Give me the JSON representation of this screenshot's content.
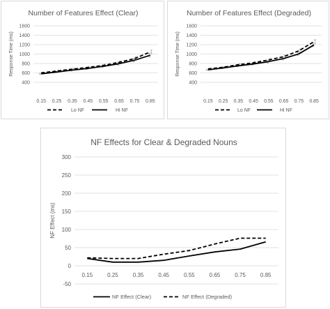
{
  "chart_data": [
    {
      "type": "line",
      "title": "Number of Features Effect (Clear)",
      "xlabel": "",
      "ylabel": "Response Time (ms)",
      "x": [
        "0.15",
        "0.25",
        "0.35",
        "0.45",
        "0.55",
        "0.65",
        "0.75",
        "0.85"
      ],
      "yticks": [
        "400",
        "600",
        "800",
        "1000",
        "1200",
        "1400",
        "1600"
      ],
      "ylim": [
        400,
        1600
      ],
      "grid": true,
      "legend": "bottom",
      "series": [
        {
          "name": "Lo NF",
          "dash": "dashed",
          "values": [
            600,
            640,
            680,
            715,
            760,
            825,
            905,
            1045
          ]
        },
        {
          "name": "Hi NF",
          "dash": "solid",
          "values": [
            580,
            620,
            660,
            695,
            740,
            795,
            870,
            975
          ]
        }
      ],
      "colors": {
        "line": "#000000",
        "grid": "#d9d9d9",
        "text": "#595959",
        "error_bars": "#a6a6a6"
      }
    },
    {
      "type": "line",
      "title": "Number of Features Effect (Degraded)",
      "xlabel": "",
      "ylabel": "Response Time (ms)",
      "x": [
        "0.15",
        "0.25",
        "0.35",
        "0.45",
        "0.55",
        "0.65",
        "0.75",
        "0.85"
      ],
      "yticks": [
        "400",
        "600",
        "800",
        "1000",
        "1200",
        "1400",
        "1600"
      ],
      "ylim": [
        400,
        1600
      ],
      "grid": true,
      "legend": "bottom",
      "series": [
        {
          "name": "Lo NF",
          "dash": "dashed",
          "values": [
            685,
            720,
            775,
            815,
            875,
            945,
            1070,
            1265
          ]
        },
        {
          "name": "Hi NF",
          "dash": "solid",
          "values": [
            665,
            705,
            750,
            790,
            840,
            905,
            1005,
            1195
          ]
        }
      ],
      "colors": {
        "line": "#000000",
        "grid": "#d9d9d9",
        "text": "#595959",
        "error_bars": "#a6a6a6"
      }
    },
    {
      "type": "line",
      "title": "NF Effects for Clear & Degraded Nouns",
      "xlabel": "",
      "ylabel": "NF Effect (ms)",
      "x": [
        "0.15",
        "0.25",
        "0.35",
        "0.45",
        "0.55",
        "0.65",
        "0.75",
        "0.85"
      ],
      "yticks": [
        "-50",
        "0",
        "50",
        "100",
        "150",
        "200",
        "250",
        "300"
      ],
      "ylim": [
        -50,
        300
      ],
      "grid": true,
      "legend": "bottom",
      "series": [
        {
          "name": "NF Effect (Clear)",
          "dash": "solid",
          "values": [
            20,
            10,
            10,
            15,
            27,
            38,
            46,
            66
          ]
        },
        {
          "name": "NF Effect (Degraded)",
          "dash": "dashed",
          "values": [
            22,
            20,
            20,
            32,
            42,
            60,
            76,
            76
          ]
        }
      ],
      "colors": {
        "line": "#000000",
        "grid": "#d9d9d9",
        "text": "#595959"
      }
    }
  ]
}
